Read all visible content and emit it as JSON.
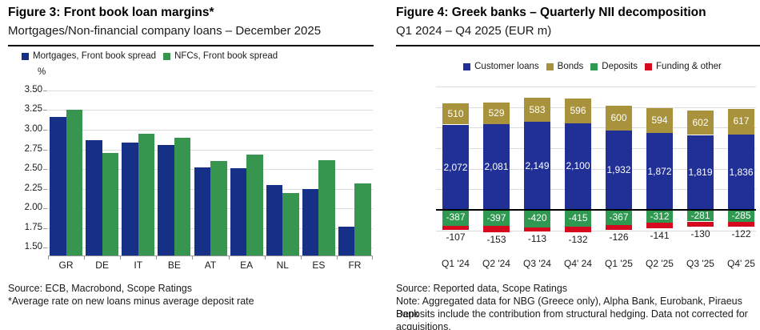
{
  "chart_data": [
    {
      "type": "bar",
      "title": "Figure 3: Front book loan margins*",
      "subtitle": "Mortgages/Non-financial company loans – December 2025",
      "ylabel": "%",
      "categories": [
        "GR",
        "DE",
        "IT",
        "BE",
        "AT",
        "EA",
        "NL",
        "ES",
        "FR"
      ],
      "series": [
        {
          "name": "Mortgages, Front book spread",
          "color": "#163087",
          "values": [
            3.16,
            2.87,
            2.84,
            2.81,
            2.52,
            2.51,
            2.3,
            2.25,
            1.77
          ]
        },
        {
          "name": "NFCs, Front book spread",
          "color": "#36954F",
          "values": [
            3.25,
            2.7,
            2.95,
            2.9,
            2.6,
            2.68,
            2.2,
            2.61,
            2.32
          ]
        }
      ],
      "yticks": [
        3.5,
        3.25,
        3.0,
        2.75,
        2.5,
        2.25,
        2.0,
        1.75,
        1.5
      ],
      "ylim": [
        1.4,
        3.59
      ],
      "grid": true,
      "legend_position": "top-left",
      "source": "Source: ECB, Macrobond, Scope Ratings",
      "footnote": "*Average rate on new loans minus average deposit rate"
    },
    {
      "type": "stacked-bar",
      "title": "Figure 4: Greek banks – Quarterly NII decomposition",
      "subtitle": "Q1 2024 – Q4 2025 (EUR m)",
      "categories": [
        "Q1 '24",
        "Q2 '24",
        "Q3 '24",
        "Q4' 24",
        "Q1 '25",
        "Q2 '25",
        "Q3 '25",
        "Q4' 25"
      ],
      "series": [
        {
          "name": "Customer loans",
          "color": "#203096",
          "label_inside": true,
          "values": [
            2072,
            2081,
            2149,
            2100,
            1932,
            1872,
            1819,
            1836
          ]
        },
        {
          "name": "Bonds",
          "color": "#A8923B",
          "label_inside": true,
          "values": [
            510,
            529,
            583,
            596,
            600,
            594,
            602,
            617
          ]
        },
        {
          "name": "Deposits",
          "color": "#2F9851",
          "label_inside": true,
          "values": [
            -387,
            -397,
            -420,
            -415,
            -367,
            -312,
            -281,
            -285
          ]
        },
        {
          "name": "Funding & other",
          "color": "#D60A1E",
          "label_inside": false,
          "values": [
            -107,
            -153,
            -113,
            -132,
            -126,
            -141,
            -130,
            -122
          ]
        }
      ],
      "gridline_step": 500,
      "gridline_top": 3000,
      "gridline_bottom": -500,
      "ylim": [
        -739,
        3152
      ],
      "zero_line": true,
      "grid": true,
      "legend_position": "top-center",
      "source": "Source: Reported data, Scope Ratings",
      "note_lines": [
        "Note: Aggregated data for NBG (Greece only), Alpha Bank, Eurobank, Piraeus Bank",
        "Deposits include the contribution from structural hedging. Data not corrected for acquisitions."
      ]
    }
  ]
}
